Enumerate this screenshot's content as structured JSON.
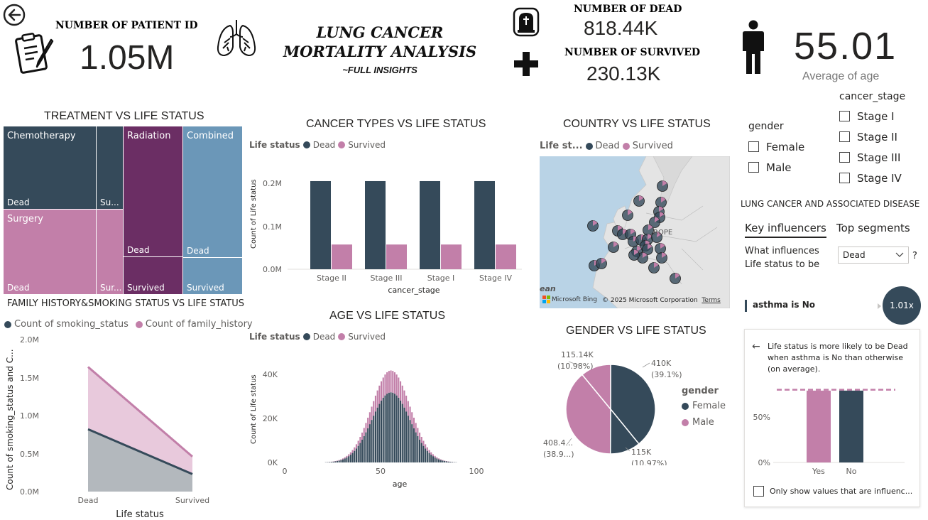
{
  "header": {
    "title_line1": "LUNG CANCER",
    "title_line2": "MORTALITY ANALYSIS",
    "subtitle": "~FULL INSIGHTS"
  },
  "kpis": {
    "patients_label": "NUMBER OF PATIENT ID",
    "patients_value": "1.05M",
    "dead_label": "NUMBER OF DEAD",
    "dead_value": "818.44K",
    "survived_label": "NUMBER OF SURVIVED",
    "survived_value": "230.13K",
    "age_value": "55.01",
    "age_label": "Average of age"
  },
  "colors": {
    "dead": "#354a5a",
    "survived": "#c27fa9",
    "radiation": "#6b2e64",
    "combined": "#6b97b8"
  },
  "treatment": {
    "title": "TREATMENT VS LIFE STATUS",
    "cells": [
      {
        "name": "Chemotherapy",
        "status": "Dead"
      },
      {
        "name": "",
        "status": "Su..."
      },
      {
        "name": "Radiation",
        "status": "Dead"
      },
      {
        "name": "",
        "status": "Survived"
      },
      {
        "name": "Combined",
        "status": "Dead"
      },
      {
        "name": "",
        "status": "Survived"
      },
      {
        "name": "Surgery",
        "status": "Dead"
      },
      {
        "name": "",
        "status": "Sur..."
      }
    ]
  },
  "cancer_types": {
    "title": "CANCER TYPES VS LIFE STATUS",
    "legend_title": "Life status",
    "legend": [
      "Dead",
      "Survived"
    ],
    "ylabel": "Count of Life status",
    "xlabel": "cancer_stage",
    "yticks": [
      "0.2M",
      "0.1M",
      "0.0M"
    ]
  },
  "country": {
    "title": "COUNTRY VS LIFE STATUS",
    "legend_title": "Life st...",
    "legend": [
      "Dead",
      "Survived"
    ],
    "map_label": "ROPE",
    "bing": "Microsoft Bing",
    "copyright": "© 2025 Microsoft Corporation",
    "terms": "Terms",
    "ocean": "ean"
  },
  "family": {
    "title": "FAMILY HISTORY&SMOKING STATUS VS LIFE STATUS",
    "legend": [
      "Count of smoking_status",
      "Count of family_history"
    ],
    "ylabel": "Count of smoking_status and C...",
    "xlabel": "Life status",
    "yticks": [
      "2.0M",
      "1.5M",
      "1.0M",
      "0.5M",
      "0.0M"
    ]
  },
  "age": {
    "title": "AGE VS LIFE STATUS",
    "legend_title": "Life status",
    "legend": [
      "Dead",
      "Survived"
    ],
    "ylabel": "Count of Life status",
    "xlabel": "age",
    "yticks": [
      "40K",
      "20K",
      "0K"
    ],
    "xticks": [
      "0",
      "50",
      "100"
    ]
  },
  "gender_chart": {
    "title": "GENDER VS LIFE STATUS",
    "legend_title": "gender",
    "legend": [
      "Female",
      "Male"
    ],
    "labels": {
      "tl1": "115.14K",
      "tl2": "(10.98%)",
      "tr1": "410K",
      "tr2": "(39.1%)",
      "bl1": "408.4...",
      "bl2": "(38.9...)",
      "br1": "115K",
      "br2": "(10.97%)"
    }
  },
  "slicers": {
    "gender_title": "gender",
    "gender": [
      "Female",
      "Male"
    ],
    "stage_title": "cancer_stage",
    "stages": [
      "Stage I",
      "Stage II",
      "Stage III",
      "Stage IV"
    ]
  },
  "influencers": {
    "section": "LUNG CANCER AND ASSOCIATED DISEASE",
    "tab1": "Key influencers",
    "tab2": "Top segments",
    "question1": "What influences",
    "question2": "Life status to be",
    "dropdown": "Dead",
    "help": "?",
    "factor": "asthma is No",
    "factor_value": "1.01x",
    "detail1": "Life status is more likely to be Dead",
    "detail2": "when asthma is No than otherwise",
    "detail3": "(on average).",
    "yticks": [
      "50%",
      "0%"
    ],
    "bar_labels": [
      "Yes",
      "No"
    ],
    "checkbox": "Only show values that are influenc..."
  },
  "chart_data": [
    {
      "type": "bar",
      "title": "CANCER TYPES VS LIFE STATUS",
      "categories": [
        "Stage II",
        "Stage III",
        "Stage I",
        "Stage IV"
      ],
      "series": [
        {
          "name": "Dead",
          "values": [
            205000,
            205000,
            205000,
            205000
          ]
        },
        {
          "name": "Survived",
          "values": [
            57500,
            57500,
            57500,
            57500
          ]
        }
      ],
      "xlabel": "cancer_stage",
      "ylabel": "Count of Life status",
      "ylim": [
        0,
        250000
      ]
    },
    {
      "type": "area",
      "title": "FAMILY HISTORY&SMOKING STATUS VS LIFE STATUS",
      "categories": [
        "Dead",
        "Survived"
      ],
      "series": [
        {
          "name": "Count of smoking_status",
          "values": [
            820000,
            230000
          ]
        },
        {
          "name": "Count of family_history",
          "values": [
            1640000,
            460000
          ]
        }
      ],
      "xlabel": "Life status",
      "ylabel": "Count of smoking_status and C...",
      "ylim": [
        0,
        2000000
      ]
    },
    {
      "type": "pie",
      "title": "GENDER VS LIFE STATUS",
      "slices": [
        {
          "gender": "Female",
          "status": "Dead",
          "value": 410000,
          "pct": 39.1
        },
        {
          "gender": "Female",
          "status": "Survived",
          "value": 115000,
          "pct": 10.97
        },
        {
          "gender": "Male",
          "status": "Dead",
          "value": 408400,
          "pct": 38.9
        },
        {
          "gender": "Male",
          "status": "Survived",
          "value": 115140,
          "pct": 10.98
        }
      ]
    },
    {
      "type": "bar",
      "title": "AGE VS LIFE STATUS",
      "distribution": "approximately normal, peak near age 55",
      "peak_dead": 32000,
      "peak_total": 42000,
      "xlim": [
        0,
        100
      ],
      "ylim": [
        0,
        48000
      ],
      "xlabel": "age",
      "ylabel": "Count of Life status"
    },
    {
      "type": "bar",
      "title": "Key influencer: asthma",
      "categories": [
        "Yes",
        "No"
      ],
      "values": [
        79,
        79
      ],
      "reference_line": 80,
      "unit": "%"
    }
  ]
}
